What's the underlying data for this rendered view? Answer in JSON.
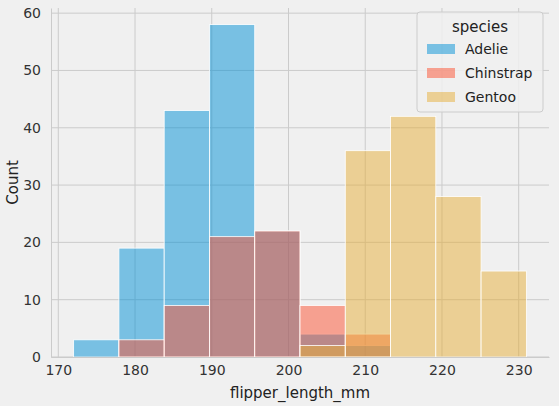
{
  "chart_data": {
    "type": "histogram",
    "x_label": "flipper_length_mm",
    "y_label": "Count",
    "bins": [
      172,
      177.9,
      183.8,
      189.7,
      195.6,
      201.5,
      207.4,
      213.3,
      219.2,
      225.1,
      231
    ],
    "series": [
      {
        "name": "Adelie",
        "color": "#008fd5",
        "values": [
          3,
          19,
          43,
          58,
          22,
          4,
          2,
          0,
          0,
          0
        ]
      },
      {
        "name": "Chinstrap",
        "color": "#fc4f30",
        "values": [
          0,
          3,
          9,
          21,
          22,
          9,
          4,
          0,
          0,
          0
        ]
      },
      {
        "name": "Gentoo",
        "color": "#e5ae38",
        "values": [
          0,
          0,
          0,
          0,
          0,
          2,
          36,
          42,
          28,
          15
        ]
      }
    ],
    "xlim": [
      169.05,
      233.95
    ],
    "xticks": [
      170,
      180,
      190,
      200,
      210,
      220,
      230
    ],
    "ylim": [
      0,
      60.9
    ],
    "yticks": [
      0,
      10,
      20,
      30,
      40,
      50,
      60
    ],
    "grid": true,
    "legend": "upper right",
    "legend_title": "species"
  }
}
